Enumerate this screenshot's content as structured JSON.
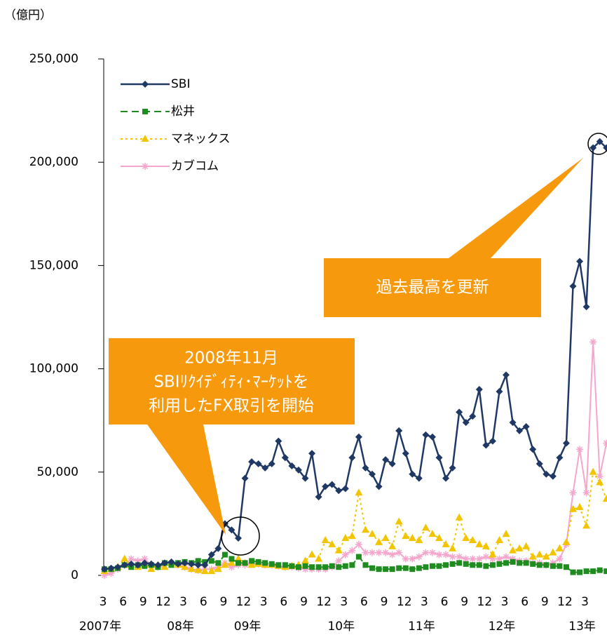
{
  "chart_data": {
    "type": "line",
    "unit_label": "（億円）",
    "categories": [
      "3",
      null,
      null,
      "6",
      null,
      null,
      "9",
      null,
      null,
      "12",
      null,
      null,
      "3",
      null,
      null,
      "6",
      null,
      null,
      "9",
      null,
      null,
      "12",
      null,
      null,
      "3",
      null,
      null,
      "6",
      null,
      null,
      "9",
      null,
      null,
      "12",
      null,
      null,
      "3",
      null,
      null,
      "6",
      null,
      null,
      "9",
      null,
      null,
      "12",
      null,
      null,
      "3",
      null,
      null,
      "6",
      null,
      null,
      "9",
      null,
      null,
      "12",
      null,
      null,
      "3",
      null,
      null,
      "6",
      null,
      null,
      "9",
      null,
      null,
      "12",
      null,
      null,
      "3",
      null,
      null,
      null
    ],
    "year_categories": [
      "2007年",
      null,
      null,
      null,
      null,
      null,
      null,
      null,
      null,
      null,
      null,
      null,
      "08年",
      null,
      null,
      null,
      null,
      null,
      null,
      null,
      null,
      null,
      "09年",
      null,
      null,
      null,
      null,
      null,
      null,
      null,
      null,
      null,
      null,
      null,
      null,
      null,
      "10年",
      null,
      null,
      null,
      null,
      null,
      null,
      null,
      null,
      null,
      null,
      null,
      "11年",
      null,
      null,
      null,
      null,
      null,
      null,
      null,
      null,
      null,
      null,
      null,
      "12年",
      null,
      null,
      null,
      null,
      null,
      null,
      null,
      null,
      null,
      null,
      null,
      "13年",
      null,
      null,
      null
    ],
    "ylim": [
      0,
      250000
    ],
    "yticks": [
      {
        "value": 0,
        "label": "0"
      },
      {
        "value": 50000,
        "label": "50,000"
      },
      {
        "value": 100000,
        "label": "100,000"
      },
      {
        "value": 150000,
        "label": "150,000"
      },
      {
        "value": 200000,
        "label": "200,000"
      },
      {
        "value": 250000,
        "label": "250,000"
      }
    ],
    "legend": "top-left",
    "series": [
      {
        "name": "SBI",
        "color": "#1f3864",
        "marker": "diamond",
        "dash": "solid",
        "values": [
          3000,
          3500,
          4000,
          5000,
          5500,
          5000,
          6000,
          5500,
          5000,
          6000,
          6500,
          5500,
          6000,
          5500,
          5000,
          5000,
          10000,
          13000,
          25000,
          22000,
          18000,
          47000,
          55000,
          54000,
          52000,
          54000,
          65000,
          57000,
          53000,
          51000,
          47000,
          59000,
          38000,
          43000,
          44000,
          41000,
          42000,
          57000,
          67000,
          52000,
          49000,
          43000,
          56000,
          54000,
          70000,
          59000,
          49000,
          47000,
          68000,
          67000,
          57000,
          47000,
          52000,
          79000,
          74000,
          77000,
          90000,
          63000,
          65000,
          89000,
          97000,
          74000,
          70000,
          72000,
          61000,
          54000,
          49000,
          48000,
          57000,
          64000,
          140000,
          152000,
          130000,
          207000,
          210000,
          207000
        ]
      },
      {
        "name": "松井",
        "color": "#1e8c1e",
        "marker": "square",
        "dash": "dashed",
        "values": [
          3000,
          3000,
          3500,
          5000,
          4000,
          5000,
          4500,
          5000,
          4000,
          6000,
          5000,
          6000,
          6500,
          6000,
          7000,
          6500,
          7000,
          6000,
          10000,
          8000,
          6000,
          6000,
          7000,
          6500,
          6000,
          5500,
          5000,
          5000,
          4500,
          4000,
          4500,
          4000,
          4000,
          4000,
          4500,
          4000,
          4500,
          5000,
          9000,
          5000,
          3500,
          3000,
          3000,
          3000,
          3500,
          3500,
          3000,
          3500,
          4000,
          4500,
          4500,
          5000,
          5500,
          6000,
          5500,
          5000,
          5000,
          4500,
          5000,
          5500,
          6000,
          6500,
          6000,
          6000,
          5500,
          5000,
          5000,
          4500,
          4500,
          4000,
          1500,
          1500,
          2000,
          2000,
          2500,
          2000
        ]
      },
      {
        "name": "マネックス",
        "color": "#f2c500",
        "marker": "triangle",
        "dash": "dotted",
        "values": [
          2000,
          3000,
          4000,
          8000,
          5000,
          4000,
          5000,
          3000,
          5000,
          4000,
          6000,
          5000,
          4000,
          3000,
          2500,
          2000,
          2000,
          3000,
          5000,
          6000,
          8000,
          6000,
          5000,
          5500,
          5000,
          5000,
          4500,
          4000,
          4500,
          5000,
          7000,
          10000,
          8000,
          17000,
          15000,
          12000,
          18000,
          19000,
          40000,
          22000,
          20000,
          16000,
          18000,
          14000,
          26000,
          19000,
          18000,
          17000,
          23000,
          20000,
          18000,
          15000,
          13000,
          28000,
          18000,
          17000,
          15000,
          14000,
          10000,
          17000,
          20000,
          12000,
          13000,
          14000,
          9000,
          10000,
          9000,
          11000,
          13000,
          16000,
          32000,
          33000,
          24000,
          50000,
          45000,
          37000
        ]
      },
      {
        "name": "カブコム",
        "color": "#f4a6cc",
        "marker": "asterisk",
        "dash": "solid",
        "values": [
          0,
          1000,
          3000,
          5000,
          8000,
          7000,
          8000,
          5000,
          4000,
          5000,
          6000,
          5000,
          4000,
          3000,
          2500,
          3000,
          3000,
          4000,
          6000,
          4000,
          5000,
          5000,
          6000,
          5500,
          5000,
          5000,
          4500,
          4000,
          4000,
          3500,
          3000,
          3000,
          3000,
          3000,
          4000,
          7000,
          10000,
          12000,
          15000,
          11000,
          11000,
          11000,
          11000,
          10000,
          11000,
          8000,
          8000,
          9000,
          11000,
          11000,
          10000,
          10000,
          9000,
          9000,
          8000,
          8000,
          8000,
          9000,
          8000,
          8000,
          9000,
          8000,
          7000,
          7000,
          6000,
          6000,
          5000,
          6000,
          8000,
          15000,
          40000,
          61000,
          40000,
          113000,
          48000,
          64000
        ]
      }
    ],
    "annotations": [
      {
        "lines": [
          "過去最高を更新"
        ]
      },
      {
        "lines": [
          "2008年11月",
          "SBIﾘｸｲﾃﾞｨﾃｨ･ﾏｰｹｯﾄを",
          "利用したFX取引を開始"
        ]
      }
    ]
  }
}
